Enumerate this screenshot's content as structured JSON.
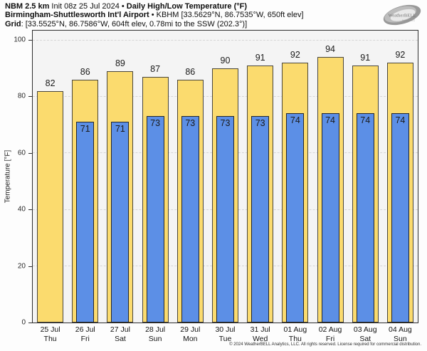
{
  "title": {
    "model": "NBM 2.5 km",
    "init": " Init 08z 25 Jul 2024 ",
    "sep1": "• ",
    "product": "Daily High/Low Temperature (°F)",
    "station_name": "Birmingham-Shuttlesworth Int'l Airport",
    "sep2": " • ",
    "station_meta": "KBHM [33.5629°N, 86.7535°W, 650ft elev]",
    "grid_label": "Grid",
    "grid_meta": ": [33.5525°N, 86.7586°W, 604ft elev, 0.78mi to the SSW (202.3°)]"
  },
  "logo": {
    "name": "WeatherBELL",
    "sub": "Analytics LLC"
  },
  "chart_data": {
    "type": "bar",
    "title": "Daily High/Low Temperature (°F)",
    "ylabel": "Temperature [°F]",
    "ylim": [
      0,
      103.3
    ],
    "yticks": [
      0,
      20,
      40,
      60,
      80,
      100
    ],
    "grid": "horizontal-dashed",
    "legend_position": "none",
    "categories_date": [
      "25 Jul",
      "26 Jul",
      "27 Jul",
      "28 Jul",
      "29 Jul",
      "30 Jul",
      "31 Jul",
      "01 Aug",
      "02 Aug",
      "03 Aug",
      "04 Aug"
    ],
    "categories_day": [
      "Thu",
      "Fri",
      "Sat",
      "Sun",
      "Mon",
      "Tue",
      "Wed",
      "Thu",
      "Fri",
      "Sat",
      "Sun"
    ],
    "series": [
      {
        "name": "High",
        "color": "#FBDB6E",
        "values": [
          82,
          86,
          89,
          87,
          86,
          90,
          91,
          92,
          94,
          91,
          92
        ]
      },
      {
        "name": "Low",
        "color": "#5C8FE6",
        "values": [
          null,
          71,
          71,
          73,
          73,
          73,
          73,
          74,
          74,
          74,
          74
        ]
      }
    ]
  },
  "colors": {
    "plot_bg": "#f4f4f4",
    "grid": "#d5d5d5",
    "frame": "#2e2e2e",
    "high": "#FBDB6E",
    "low": "#5C8FE6"
  },
  "footer": {
    "copyright": "© 2024 WeatherBELL Analytics, LLC. All rights reserved. License required for commercial distribution."
  }
}
